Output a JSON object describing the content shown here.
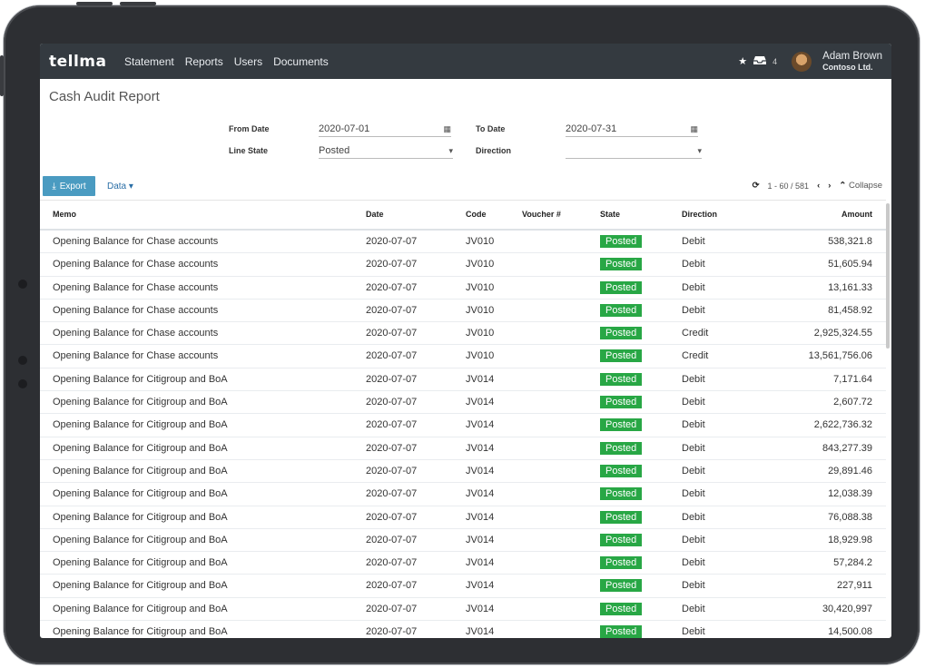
{
  "nav": {
    "brand": "tellma",
    "links": [
      "Statement",
      "Reports",
      "Users",
      "Documents"
    ],
    "inbox_count": "4",
    "user_name": "Adam Brown",
    "user_org": "Contoso Ltd."
  },
  "page": {
    "title": "Cash Audit Report"
  },
  "filters": {
    "from_date_label": "From Date",
    "from_date_value": "2020-07-01",
    "to_date_label": "To Date",
    "to_date_value": "2020-07-31",
    "line_state_label": "Line State",
    "line_state_value": "Posted",
    "direction_label": "Direction",
    "direction_value": ""
  },
  "toolbar": {
    "export_label": "Export",
    "data_label": "Data",
    "range": "1 - 60 / 581",
    "collapse_label": "Collapse"
  },
  "table": {
    "headers": {
      "memo": "Memo",
      "date": "Date",
      "code": "Code",
      "voucher": "Voucher #",
      "state": "State",
      "direction": "Direction",
      "amount": "Amount"
    },
    "rows": [
      {
        "memo": "Opening Balance for Chase accounts",
        "date": "2020-07-07",
        "code": "JV010",
        "voucher": "",
        "state": "Posted",
        "direction": "Debit",
        "amount": "538,321.8"
      },
      {
        "memo": "Opening Balance for Chase accounts",
        "date": "2020-07-07",
        "code": "JV010",
        "voucher": "",
        "state": "Posted",
        "direction": "Debit",
        "amount": "51,605.94"
      },
      {
        "memo": "Opening Balance for Chase accounts",
        "date": "2020-07-07",
        "code": "JV010",
        "voucher": "",
        "state": "Posted",
        "direction": "Debit",
        "amount": "13,161.33"
      },
      {
        "memo": "Opening Balance for Chase accounts",
        "date": "2020-07-07",
        "code": "JV010",
        "voucher": "",
        "state": "Posted",
        "direction": "Debit",
        "amount": "81,458.92"
      },
      {
        "memo": "Opening Balance for Chase accounts",
        "date": "2020-07-07",
        "code": "JV010",
        "voucher": "",
        "state": "Posted",
        "direction": "Credit",
        "amount": "2,925,324.55"
      },
      {
        "memo": "Opening Balance for Chase accounts",
        "date": "2020-07-07",
        "code": "JV010",
        "voucher": "",
        "state": "Posted",
        "direction": "Credit",
        "amount": "13,561,756.06"
      },
      {
        "memo": "Opening Balance for Citigroup and BoA",
        "date": "2020-07-07",
        "code": "JV014",
        "voucher": "",
        "state": "Posted",
        "direction": "Debit",
        "amount": "7,171.64"
      },
      {
        "memo": "Opening Balance for Citigroup and BoA",
        "date": "2020-07-07",
        "code": "JV014",
        "voucher": "",
        "state": "Posted",
        "direction": "Debit",
        "amount": "2,607.72"
      },
      {
        "memo": "Opening Balance for Citigroup and BoA",
        "date": "2020-07-07",
        "code": "JV014",
        "voucher": "",
        "state": "Posted",
        "direction": "Debit",
        "amount": "2,622,736.32"
      },
      {
        "memo": "Opening Balance for Citigroup and BoA",
        "date": "2020-07-07",
        "code": "JV014",
        "voucher": "",
        "state": "Posted",
        "direction": "Debit",
        "amount": "843,277.39"
      },
      {
        "memo": "Opening Balance for Citigroup and BoA",
        "date": "2020-07-07",
        "code": "JV014",
        "voucher": "",
        "state": "Posted",
        "direction": "Debit",
        "amount": "29,891.46"
      },
      {
        "memo": "Opening Balance for Citigroup and BoA",
        "date": "2020-07-07",
        "code": "JV014",
        "voucher": "",
        "state": "Posted",
        "direction": "Debit",
        "amount": "12,038.39"
      },
      {
        "memo": "Opening Balance for Citigroup and BoA",
        "date": "2020-07-07",
        "code": "JV014",
        "voucher": "",
        "state": "Posted",
        "direction": "Debit",
        "amount": "76,088.38"
      },
      {
        "memo": "Opening Balance for Citigroup and BoA",
        "date": "2020-07-07",
        "code": "JV014",
        "voucher": "",
        "state": "Posted",
        "direction": "Debit",
        "amount": "18,929.98"
      },
      {
        "memo": "Opening Balance for Citigroup and BoA",
        "date": "2020-07-07",
        "code": "JV014",
        "voucher": "",
        "state": "Posted",
        "direction": "Debit",
        "amount": "57,284.2"
      },
      {
        "memo": "Opening Balance for Citigroup and BoA",
        "date": "2020-07-07",
        "code": "JV014",
        "voucher": "",
        "state": "Posted",
        "direction": "Debit",
        "amount": "227,911"
      },
      {
        "memo": "Opening Balance for Citigroup and BoA",
        "date": "2020-07-07",
        "code": "JV014",
        "voucher": "",
        "state": "Posted",
        "direction": "Debit",
        "amount": "30,420,997"
      },
      {
        "memo": "Opening Balance for Citigroup and BoA",
        "date": "2020-07-07",
        "code": "JV014",
        "voucher": "",
        "state": "Posted",
        "direction": "Debit",
        "amount": "14,500.08"
      }
    ]
  }
}
